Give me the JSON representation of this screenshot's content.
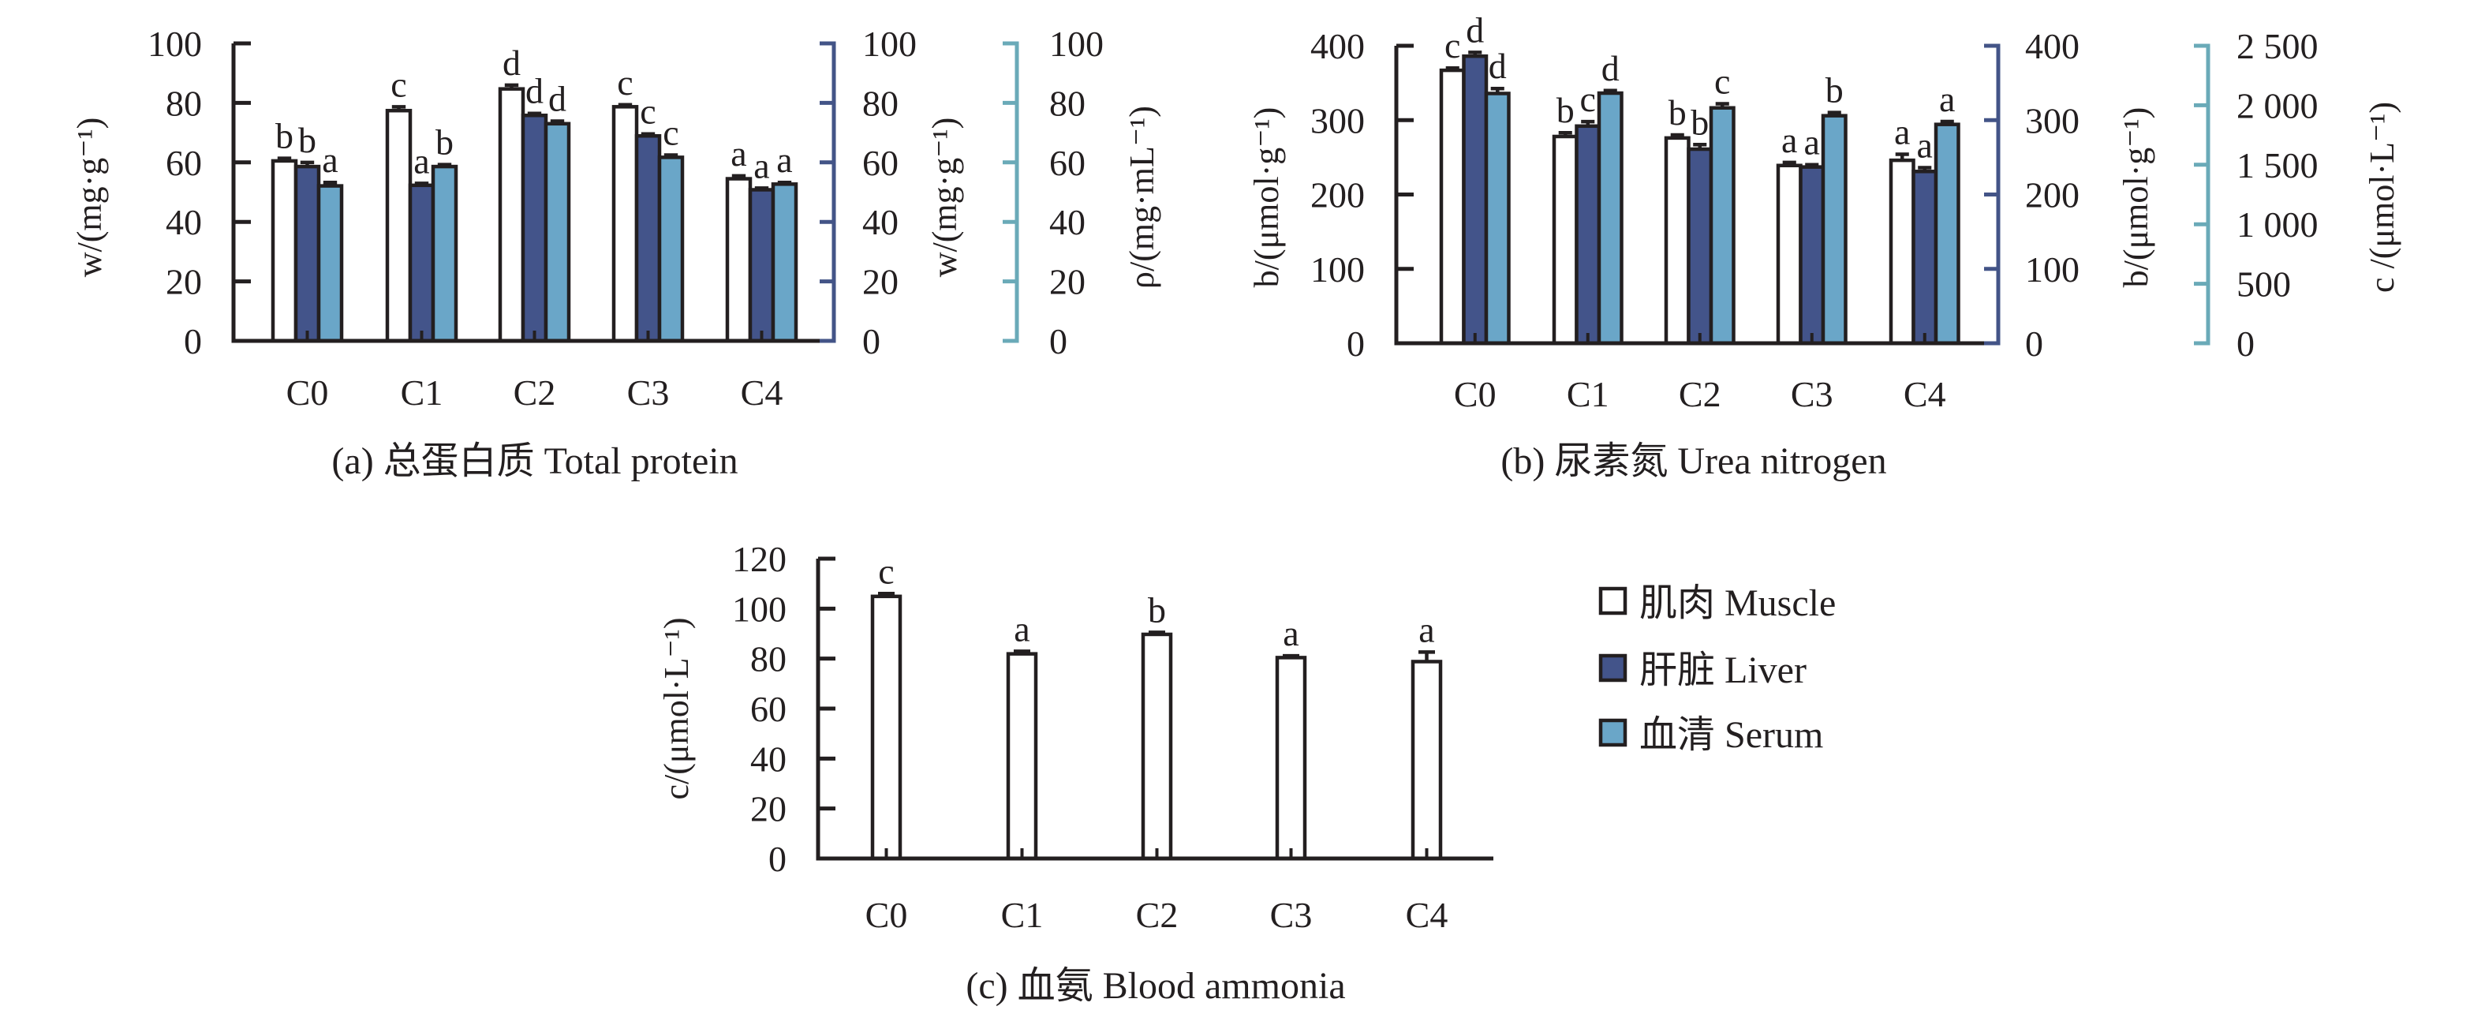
{
  "colors": {
    "muscle": "#ffffff",
    "liver": "#43548a",
    "serum": "#6aa6c8",
    "axis": "#231f20",
    "liver_axis": "#435487",
    "serum_axis": "#6aaab8"
  },
  "legend": {
    "items": [
      {
        "key": "muscle",
        "label": "肌肉 Muscle"
      },
      {
        "key": "liver",
        "label": "肝脏 Liver"
      },
      {
        "key": "serum",
        "label": "血清 Serum"
      }
    ]
  },
  "chart_data": [
    {
      "id": "a",
      "type": "bar",
      "title": "(a) 总蛋白质 Total protein",
      "categories": [
        "C0",
        "C1",
        "C2",
        "C3",
        "C4"
      ],
      "ylabel": "w/(mg·g⁻¹)",
      "ylabel_right_liver": "w/(mg·g⁻¹)",
      "ylabel_right_serum": "ρ/(mg·mL⁻¹)",
      "ylim": [
        0,
        100
      ],
      "yticks": [
        "0",
        "20",
        "40",
        "60",
        "80",
        "100"
      ],
      "yticks_liver": [
        "0",
        "20",
        "40",
        "60",
        "80",
        "100"
      ],
      "yticks_serum": [
        "0",
        "20",
        "40",
        "60",
        "80",
        "100"
      ],
      "series": [
        {
          "name": "肌肉 Muscle",
          "key": "muscle",
          "axis": "left",
          "values": [
            60.5,
            77.4,
            84.7,
            78.7,
            54.5
          ],
          "errors": [
            0.6,
            1.0,
            1.0,
            0.4,
            0.7
          ],
          "letters": [
            "b",
            "c",
            "d",
            "c",
            "a"
          ]
        },
        {
          "name": "肝脏 Liver",
          "key": "liver",
          "axis": "liver",
          "values": [
            58.6,
            52.3,
            75.8,
            68.9,
            50.8
          ],
          "errors": [
            1.1,
            0.4,
            0.4,
            0.4,
            0.3
          ],
          "letters": [
            "b",
            "a",
            "d",
            "c",
            "a"
          ]
        },
        {
          "name": "血清 Serum",
          "key": "serum",
          "axis": "serum",
          "values": [
            52.1,
            58.6,
            73.0,
            61.7,
            52.7
          ],
          "errors": [
            0.9,
            0.4,
            0.6,
            0.5,
            0.3
          ],
          "letters": [
            "a",
            "b",
            "d",
            "c",
            "a"
          ]
        }
      ]
    },
    {
      "id": "b",
      "type": "bar",
      "title": "(b) 尿素氮 Urea nitrogen",
      "categories": [
        "C0",
        "C1",
        "C2",
        "C3",
        "C4"
      ],
      "ylabel": "b/(μmol·g⁻¹)",
      "ylabel_right_liver": "b/(μmol·g⁻¹)",
      "ylabel_right_serum": "c /(μmol·L⁻¹)",
      "ylim": [
        0,
        400
      ],
      "ylim_serum": [
        0,
        2500
      ],
      "yticks": [
        "0",
        "100",
        "200",
        "300",
        "400"
      ],
      "yticks_liver": [
        "0",
        "100",
        "200",
        "300",
        "400"
      ],
      "yticks_serum": [
        "0",
        "500",
        "1 000",
        "1 500",
        "2 000",
        "2 500"
      ],
      "series": [
        {
          "name": "肌肉 Muscle",
          "key": "muscle",
          "axis": "left",
          "values": [
            367,
            278,
            276,
            239,
            246
          ],
          "errors": [
            2,
            4,
            3,
            3,
            7
          ],
          "letters": [
            "c",
            "b",
            "b",
            "a",
            "a"
          ]
        },
        {
          "name": "肝脏 Liver",
          "key": "liver",
          "axis": "liver",
          "values": [
            386,
            292,
            261,
            237,
            231
          ],
          "errors": [
            4,
            5,
            5,
            2,
            4
          ],
          "letters": [
            "d",
            "c",
            "b",
            "a",
            "a"
          ]
        },
        {
          "name": "血清 Serum",
          "key": "serum",
          "axis": "serum",
          "values": [
            2099,
            2102,
            1978,
            1912,
            1839
          ],
          "errors": [
            35,
            15,
            28,
            20,
            18
          ],
          "letters": [
            "d",
            "d",
            "c",
            "b",
            "a"
          ]
        }
      ]
    },
    {
      "id": "c",
      "type": "bar",
      "title": "(c) 血氨 Blood ammonia",
      "categories": [
        "C0",
        "C1",
        "C2",
        "C3",
        "C4"
      ],
      "ylabel": "c/(μmol·L⁻¹)",
      "ylim": [
        0,
        120
      ],
      "yticks": [
        "0",
        "20",
        "40",
        "60",
        "80",
        "100",
        "120"
      ],
      "series": [
        {
          "name": "肌肉 Muscle",
          "key": "muscle",
          "axis": "left",
          "values": [
            104.9,
            81.9,
            89.7,
            80.4,
            78.8
          ],
          "errors": [
            0.8,
            0.7,
            0.5,
            0.4,
            3.5
          ],
          "letters": [
            "c",
            "a",
            "b",
            "a",
            "a"
          ]
        }
      ]
    }
  ]
}
